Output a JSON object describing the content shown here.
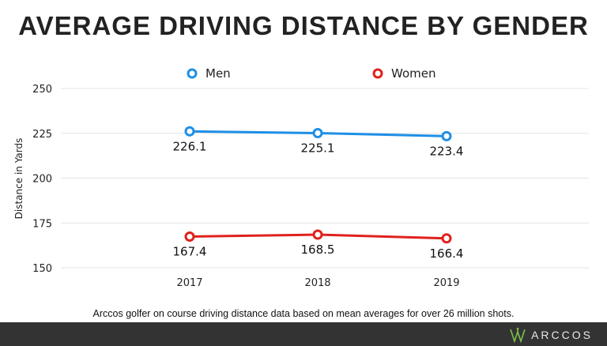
{
  "chart_data": {
    "type": "line",
    "title": "AVERAGE DRIVING DISTANCE BY GENDER",
    "ylabel": "Distance in Yards",
    "xlabel": "",
    "categories": [
      "2017",
      "2018",
      "2019"
    ],
    "ylim": [
      150,
      250
    ],
    "yticks": [
      "150",
      "175",
      "200",
      "225",
      "250"
    ],
    "grid": true,
    "legend": "top",
    "series": [
      {
        "name": "Men",
        "values": [
          226.1,
          225.1,
          223.4
        ],
        "labels": [
          "226.1",
          "225.1",
          "223.4"
        ],
        "color": "#1e8fe6"
      },
      {
        "name": "Women",
        "values": [
          167.4,
          168.5,
          166.4
        ],
        "labels": [
          "167.4",
          "168.5",
          "166.4"
        ],
        "color": "#e0211c"
      }
    ]
  },
  "footnote": "Arccos golfer on course driving distance data based on mean averages for over 26 million shots.",
  "brand": {
    "name": "ARCCOS",
    "icon": "arccos-logo-icon",
    "color": "#7dc24b"
  }
}
